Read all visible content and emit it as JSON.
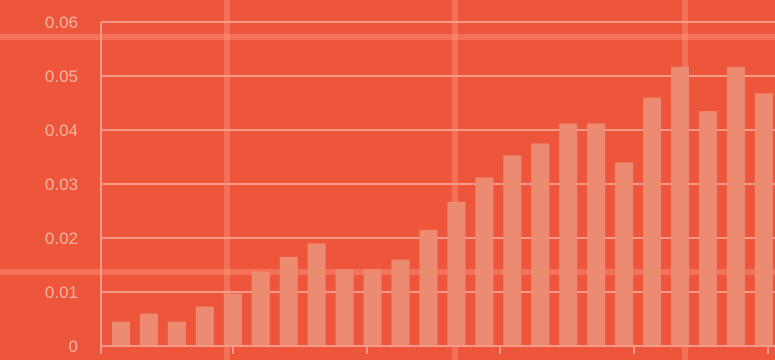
{
  "chart_data": {
    "type": "bar",
    "title": "",
    "xlabel": "",
    "ylabel": "",
    "ylim": [
      0,
      0.06
    ],
    "yticks": [
      "0",
      "0.01",
      "0.02",
      "0.03",
      "0.04",
      "0.05",
      "0.06"
    ],
    "grid": true,
    "values": [
      0.0045,
      0.006,
      0.0045,
      0.0073,
      0.0097,
      0.0138,
      0.0165,
      0.019,
      0.0142,
      0.0142,
      0.016,
      0.0215,
      0.0267,
      0.0312,
      0.0353,
      0.0375,
      0.0412,
      0.0412,
      0.034,
      0.046,
      0.0517,
      0.0435,
      0.0517,
      0.0468
    ],
    "colors": {
      "background": "#ee563c",
      "bar": "#ec8b72",
      "grid": "#f59a86",
      "tick_text": "#f7b2a2"
    }
  }
}
